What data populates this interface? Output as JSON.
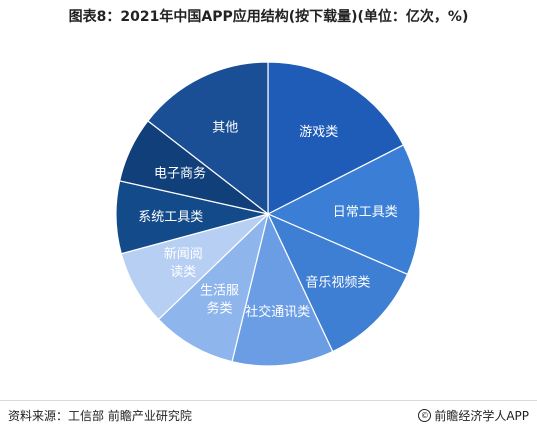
{
  "title": "图表8：2021年中国APP应用结构(按下载量)(单位：亿次，%)",
  "chart_data": {
    "type": "pie",
    "slices": [
      {
        "label_lines": [
          "游戏类"
        ],
        "value": 17.5,
        "color": "#1f5cb8"
      },
      {
        "label_lines": [
          "日常工具类"
        ],
        "value": 14.0,
        "color": "#3a7fd5"
      },
      {
        "label_lines": [
          "音乐视频类"
        ],
        "value": 11.5,
        "color": "#3f7fd3"
      },
      {
        "label_lines": [
          "社交通讯类"
        ],
        "value": 10.8,
        "color": "#6b9de4"
      },
      {
        "label_lines": [
          "生活服",
          "务类"
        ],
        "value": 9.0,
        "color": "#8eb5ec"
      },
      {
        "label_lines": [
          "新闻阅",
          "读类"
        ],
        "value": 8.0,
        "color": "#b6cff3"
      },
      {
        "label_lines": [
          "系统工具类"
        ],
        "value": 7.7,
        "color": "#134a8a"
      },
      {
        "label_lines": [
          "电子商务"
        ],
        "value": 7.0,
        "color": "#113f7a"
      },
      {
        "label_lines": [
          "其他"
        ],
        "value": 14.5,
        "color": "#1a4f96"
      }
    ]
  },
  "footer": {
    "source": "资料来源：工信部 前瞻产业研究院",
    "copyright_symbol": "©",
    "copyright": "前瞻经济学人APP"
  }
}
